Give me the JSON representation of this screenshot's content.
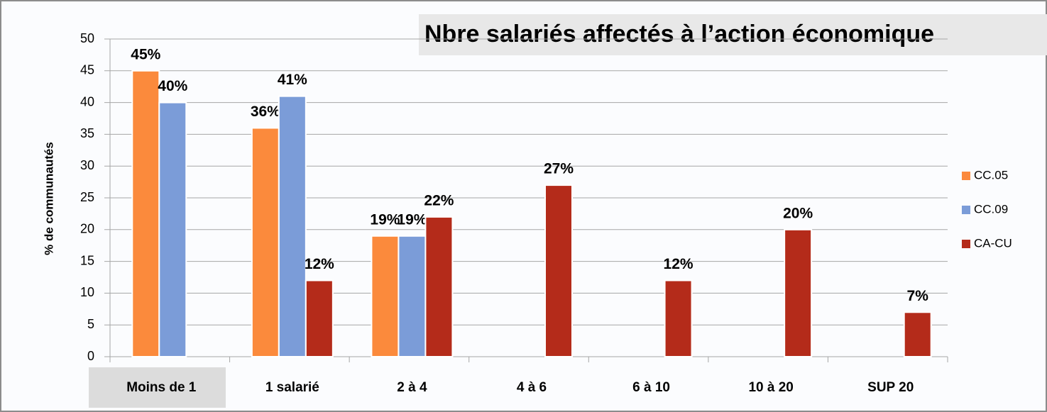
{
  "chart_data": {
    "type": "bar",
    "title": "Nbre salariés affectés à l’action économique",
    "y_label": "% de communautés",
    "categories": [
      "Moins de 1",
      "1 salarié",
      "2 à 4",
      "4 à  6",
      "6 à 10",
      "10 à 20",
      "SUP 20"
    ],
    "series": [
      {
        "name": "CC.05",
        "color": "#fb8a3c",
        "values": [
          45,
          36,
          19,
          null,
          null,
          null,
          null
        ],
        "value_labels": [
          "45%",
          "36%",
          "19%",
          null,
          null,
          null,
          null
        ]
      },
      {
        "name": "CC.09",
        "color": "#7b9cd8",
        "values": [
          40,
          41,
          19,
          null,
          null,
          null,
          null
        ],
        "value_labels": [
          "40%",
          "41%",
          "19%",
          null,
          null,
          null,
          null
        ]
      },
      {
        "name": "CA-CU",
        "color": "#b42b1a",
        "values": [
          null,
          12,
          22,
          27,
          12,
          20,
          7
        ],
        "value_labels": [
          null,
          "12%",
          "22%",
          "27%",
          "12%",
          "20%",
          "7%"
        ]
      }
    ],
    "ylim": [
      0,
      50
    ],
    "yticks": [
      0,
      5,
      10,
      15,
      20,
      25,
      30,
      35,
      40,
      45,
      50
    ],
    "grid": true,
    "legend": "right"
  }
}
